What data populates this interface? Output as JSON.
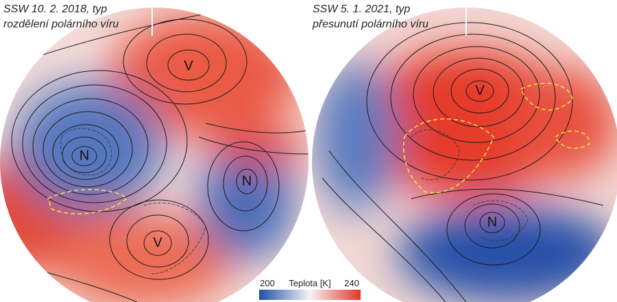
{
  "maps": [
    {
      "title_line1": "SSW 10. 2. 2018, typ",
      "title_line2": "rozdělení polárního víru",
      "labels": [
        "V",
        "N",
        "N",
        "V"
      ]
    },
    {
      "title_line1": "SSW 5. 1. 2021, typ",
      "title_line2": "přesunutí polárního víru",
      "labels": [
        "V",
        "N"
      ]
    }
  ],
  "colorbar": {
    "min_label": "200",
    "title": "Teplota [K]",
    "max_label": "240"
  }
}
